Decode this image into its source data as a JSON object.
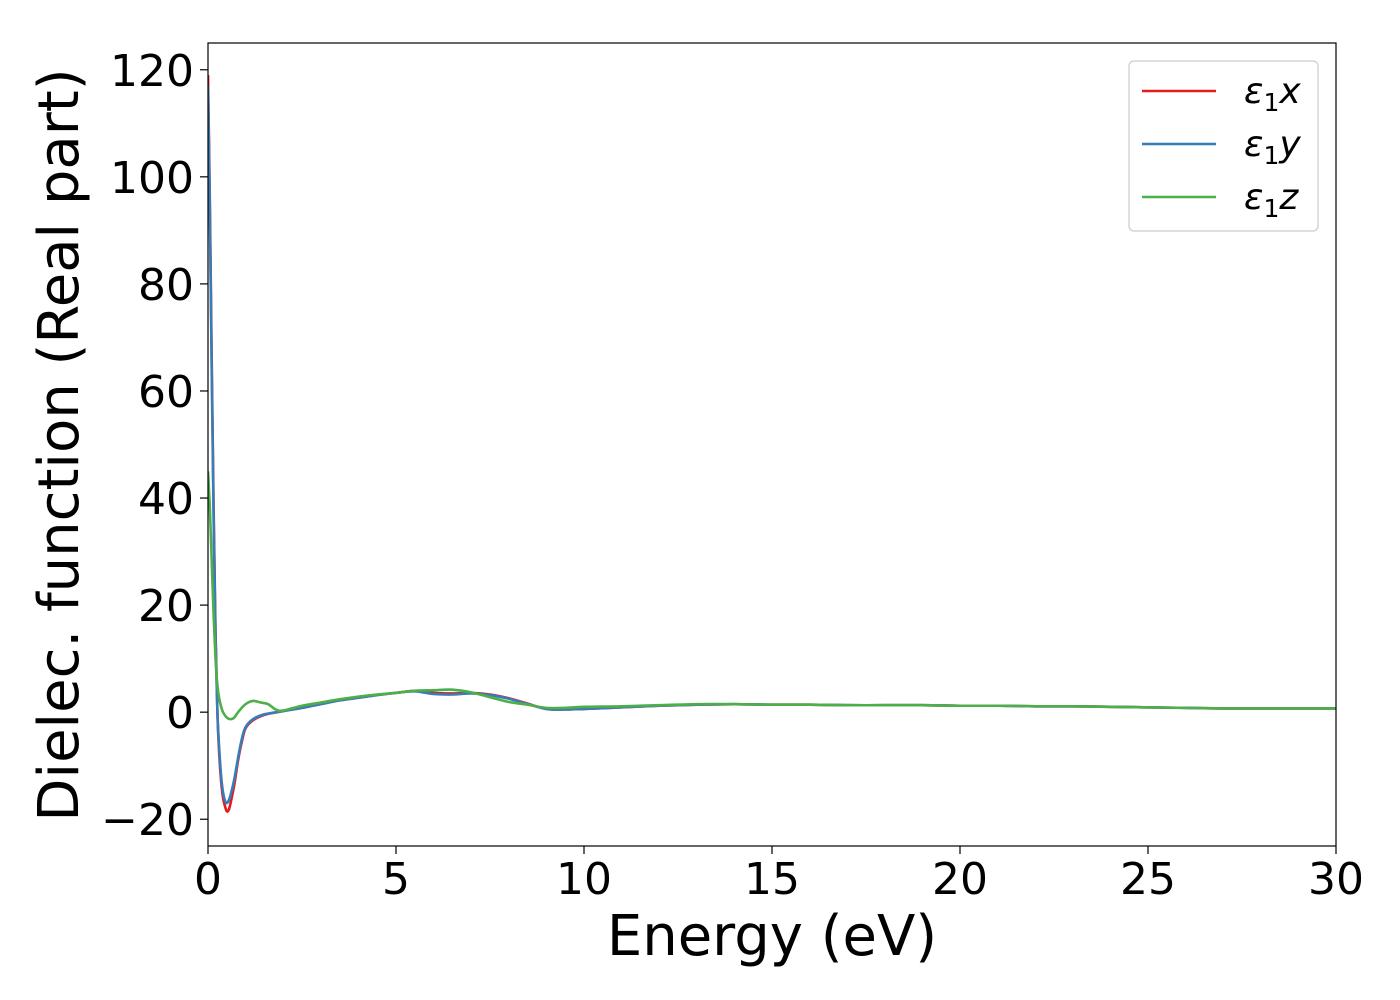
{
  "chart_data": {
    "type": "line",
    "title": "",
    "xlabel": "Energy (eV)",
    "ylabel": "Dielec. function (Real part)",
    "xlim": [
      0,
      30
    ],
    "ylim": [
      -25,
      125
    ],
    "xticks": [
      0,
      5,
      10,
      15,
      20,
      25,
      30
    ],
    "xtick_labels": [
      "0",
      "5",
      "10",
      "15",
      "20",
      "25",
      "30"
    ],
    "yticks": [
      -20,
      0,
      20,
      40,
      60,
      80,
      100,
      120
    ],
    "ytick_labels": [
      "−20",
      "0",
      "20",
      "40",
      "60",
      "80",
      "100",
      "120"
    ],
    "grid": false,
    "legend_position": "top-right",
    "series": [
      {
        "name": "ε₁x",
        "legend_base": "ε",
        "legend_sub": "1",
        "legend_var": "x",
        "color": "#e41a1c",
        "x": [
          0,
          0.05,
          0.1,
          0.15,
          0.2,
          0.25,
          0.3,
          0.35,
          0.4,
          0.45,
          0.5,
          0.55,
          0.6,
          0.7,
          0.8,
          0.9,
          1.0,
          1.2,
          1.5,
          2.0,
          2.5,
          3.0,
          3.5,
          4.0,
          4.5,
          5.0,
          5.5,
          6.0,
          6.5,
          7.0,
          7.5,
          8.0,
          8.5,
          9.0,
          9.5,
          10.0,
          11.0,
          12.0,
          13.0,
          14.0,
          15.0,
          16.0,
          17.0,
          18.0,
          19.0,
          20.0,
          21.0,
          22.0,
          23.0,
          24.0,
          25.0,
          26.0,
          27.0,
          28.0,
          29.0,
          30.0
        ],
        "y": [
          119,
          95,
          65,
          38,
          15,
          0,
          -8,
          -13,
          -16,
          -17.5,
          -18.5,
          -18.3,
          -17,
          -13.5,
          -9,
          -5.5,
          -3,
          -1.5,
          -0.5,
          0.2,
          0.8,
          1.5,
          2.2,
          2.7,
          3.2,
          3.6,
          4.0,
          3.6,
          3.5,
          3.6,
          3.3,
          2.6,
          1.6,
          0.6,
          0.5,
          0.6,
          0.9,
          1.2,
          1.4,
          1.5,
          1.4,
          1.4,
          1.3,
          1.3,
          1.3,
          1.2,
          1.2,
          1.1,
          1.1,
          1.0,
          0.9,
          0.8,
          0.7,
          0.7,
          0.7,
          0.7
        ]
      },
      {
        "name": "ε₁y",
        "legend_base": "ε",
        "legend_sub": "1",
        "legend_var": "y",
        "color": "#377eb8",
        "x": [
          0,
          0.05,
          0.1,
          0.15,
          0.2,
          0.25,
          0.3,
          0.35,
          0.4,
          0.45,
          0.5,
          0.55,
          0.6,
          0.7,
          0.8,
          0.9,
          1.0,
          1.2,
          1.5,
          2.0,
          2.5,
          3.0,
          3.5,
          4.0,
          4.5,
          5.0,
          5.5,
          6.0,
          6.5,
          7.0,
          7.5,
          8.0,
          8.5,
          9.0,
          9.5,
          10.0,
          11.0,
          12.0,
          13.0,
          14.0,
          15.0,
          16.0,
          17.0,
          18.0,
          19.0,
          20.0,
          21.0,
          22.0,
          23.0,
          24.0,
          25.0,
          26.0,
          27.0,
          28.0,
          29.0,
          30.0
        ],
        "y": [
          117,
          93,
          63,
          36,
          14,
          0,
          -7,
          -12,
          -15,
          -16.5,
          -17,
          -16.5,
          -15.5,
          -12.5,
          -8.5,
          -5,
          -2.8,
          -1.3,
          -0.4,
          0.2,
          0.8,
          1.5,
          2.2,
          2.7,
          3.2,
          3.6,
          3.9,
          3.4,
          3.3,
          3.5,
          3.2,
          2.5,
          1.5,
          0.6,
          0.5,
          0.6,
          0.9,
          1.2,
          1.4,
          1.5,
          1.4,
          1.4,
          1.3,
          1.3,
          1.3,
          1.2,
          1.2,
          1.1,
          1.1,
          1.0,
          0.9,
          0.8,
          0.7,
          0.7,
          0.7,
          0.7
        ]
      },
      {
        "name": "ε₁z",
        "legend_base": "ε",
        "legend_sub": "1",
        "legend_var": "z",
        "color": "#4daf4a",
        "x": [
          0,
          0.05,
          0.1,
          0.15,
          0.2,
          0.25,
          0.3,
          0.35,
          0.4,
          0.5,
          0.6,
          0.7,
          0.8,
          1.0,
          1.2,
          1.4,
          1.6,
          1.8,
          2.0,
          2.5,
          3.0,
          3.5,
          4.0,
          4.5,
          5.0,
          5.5,
          6.0,
          6.5,
          7.0,
          7.5,
          8.0,
          8.5,
          9.0,
          9.5,
          10.0,
          11.0,
          12.0,
          13.0,
          14.0,
          15.0,
          16.0,
          17.0,
          18.0,
          19.0,
          20.0,
          21.0,
          22.0,
          23.0,
          24.0,
          25.0,
          26.0,
          27.0,
          28.0,
          29.0,
          30.0
        ],
        "y": [
          45,
          38,
          28,
          18,
          10,
          5,
          2.5,
          1,
          0,
          -1,
          -1.3,
          -1,
          0,
          1.5,
          2.1,
          1.8,
          1.5,
          0.5,
          0.3,
          1.2,
          1.8,
          2.4,
          2.9,
          3.3,
          3.6,
          4.0,
          4.1,
          4.2,
          3.7,
          2.8,
          1.9,
          1.4,
          0.8,
          0.8,
          1.0,
          1.1,
          1.3,
          1.5,
          1.5,
          1.4,
          1.4,
          1.3,
          1.3,
          1.3,
          1.2,
          1.2,
          1.1,
          1.1,
          1.0,
          0.9,
          0.8,
          0.7,
          0.7,
          0.7,
          0.7
        ]
      }
    ]
  }
}
